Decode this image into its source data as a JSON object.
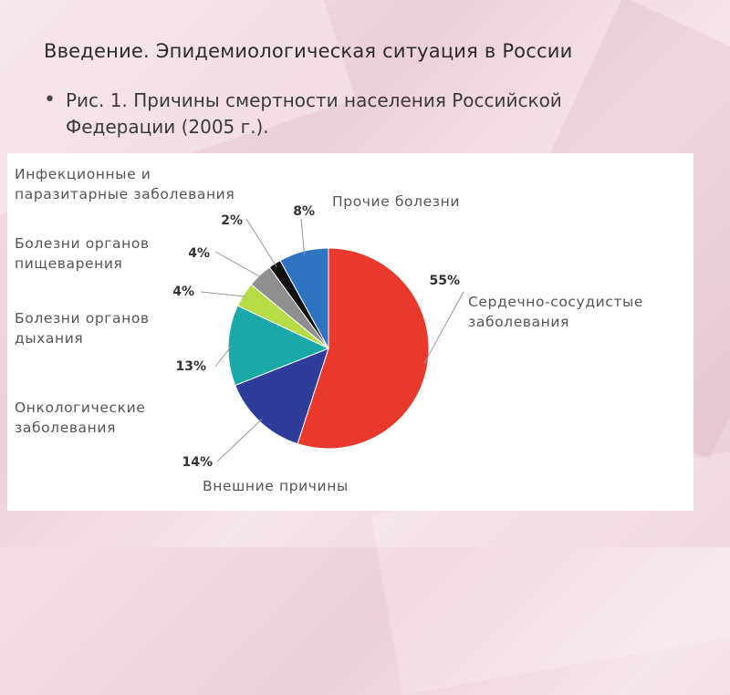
{
  "slide": {
    "title": "Введение. Эпидемиологическая ситуация в России",
    "bullet_marker": "•",
    "bullet_line1": "Рис. 1. Причины смертности населения Российской",
    "bullet_line2": "Федерации (2005 г.)."
  },
  "chart_data": {
    "type": "pie",
    "title": "",
    "slices": [
      {
        "label_lines": [
          "Сердечно-сосудистые",
          "заболевания"
        ],
        "value": 55,
        "pct_label": "55%",
        "color": "#e8392c"
      },
      {
        "label_lines": [
          "Внешние причины"
        ],
        "value": 14,
        "pct_label": "14%",
        "color": "#2e3c9a"
      },
      {
        "label_lines": [
          "Онкологические",
          "заболевания"
        ],
        "value": 13,
        "pct_label": "13%",
        "color": "#18a9a8"
      },
      {
        "label_lines": [
          "Болезни органов",
          "дыхания"
        ],
        "value": 4,
        "pct_label": "4%",
        "color": "#b7dc45"
      },
      {
        "label_lines": [
          "Болезни органов",
          "пищеварения"
        ],
        "value": 4,
        "pct_label": "4%",
        "color": "#8f8f8f"
      },
      {
        "label_lines": [
          "Инфекционные и",
          "паразитарные заболевания"
        ],
        "value": 2,
        "pct_label": "2%",
        "color": "#111111"
      },
      {
        "label_lines": [
          "Прочие болезни"
        ],
        "value": 8,
        "pct_label": "8%",
        "color": "#2f74c0"
      }
    ]
  }
}
